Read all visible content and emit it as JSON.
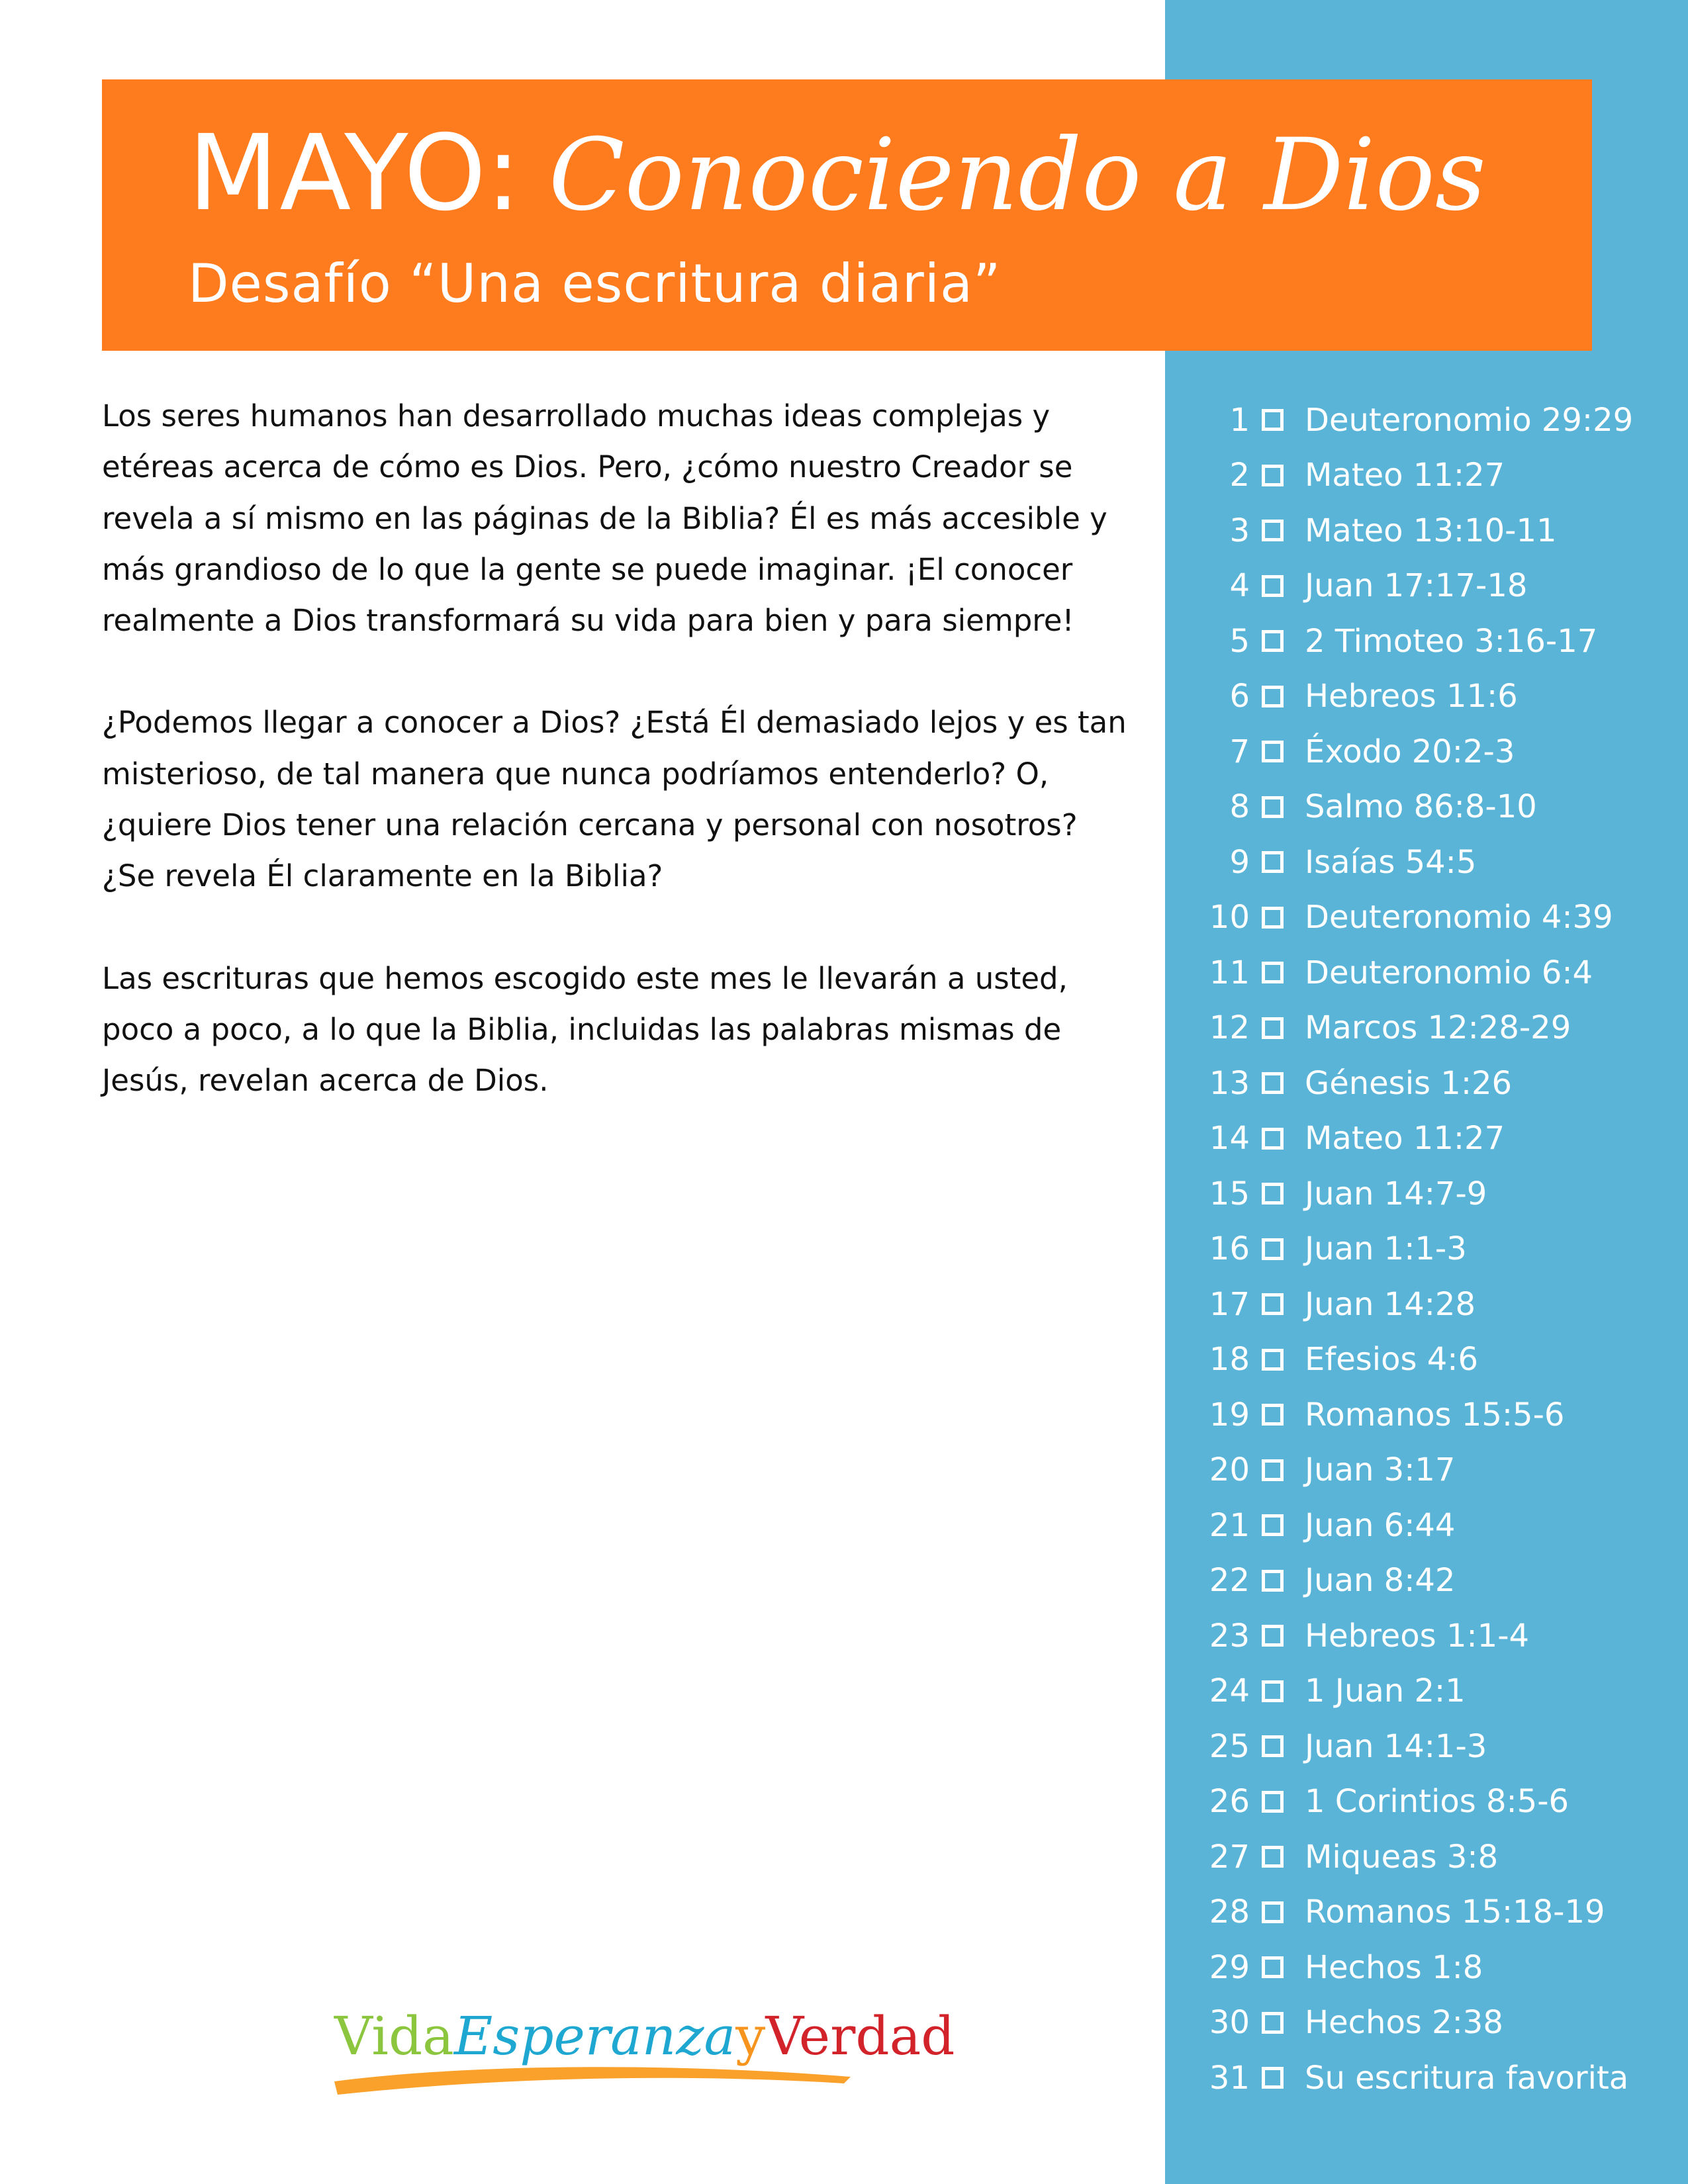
{
  "header": {
    "month": "MAYO:",
    "theme": "Conociendo a Dios",
    "subtitle": "Desafío “Una escritura diaria”"
  },
  "body": {
    "paragraphs": [
      "Los seres humanos han desarrollado muchas ideas complejas y etéreas acerca de cómo es Dios. Pero, ¿cómo nuestro Creador se revela a sí mismo en las páginas de la Biblia? Él es más accesible y más grandioso de lo que la gente se puede imaginar. ¡El conocer realmente a Dios transformará su vida para bien y para siempre!",
      "¿Podemos llegar a conocer a Dios? ¿Está Él demasiado lejos y es tan misterioso, de tal manera que nunca podríamos entenderlo? O, ¿quiere Dios tener una relación cercana y personal con nosotros? ¿Se revela Él claramente en la Biblia?",
      "Las escrituras que hemos escogido este mes le llevarán a usted, poco a poco, a lo que la Biblia, incluidas las palabras mismas de Jesús, revelan acerca de Dios."
    ]
  },
  "readings": [
    {
      "day": "1",
      "ref": "Deuteronomio 29:29"
    },
    {
      "day": "2",
      "ref": "Mateo 11:27"
    },
    {
      "day": "3",
      "ref": "Mateo 13:10-11"
    },
    {
      "day": "4",
      "ref": "Juan 17:17-18"
    },
    {
      "day": "5",
      "ref": "2 Timoteo 3:16-17"
    },
    {
      "day": "6",
      "ref": "Hebreos 11:6"
    },
    {
      "day": "7",
      "ref": "Éxodo 20:2-3"
    },
    {
      "day": "8",
      "ref": "Salmo 86:8-10"
    },
    {
      "day": "9",
      "ref": "Isaías 54:5"
    },
    {
      "day": "10",
      "ref": "Deuteronomio 4:39"
    },
    {
      "day": "11",
      "ref": "Deuteronomio 6:4"
    },
    {
      "day": "12",
      "ref": "Marcos 12:28-29"
    },
    {
      "day": "13",
      "ref": "Génesis 1:26"
    },
    {
      "day": "14",
      "ref": "Mateo 11:27"
    },
    {
      "day": "15",
      "ref": "Juan 14:7-9"
    },
    {
      "day": "16",
      "ref": "Juan 1:1-3"
    },
    {
      "day": "17",
      "ref": "Juan 14:28"
    },
    {
      "day": "18",
      "ref": "Efesios 4:6"
    },
    {
      "day": "19",
      "ref": "Romanos 15:5-6"
    },
    {
      "day": "20",
      "ref": "Juan 3:17"
    },
    {
      "day": "21",
      "ref": "Juan 6:44"
    },
    {
      "day": "22",
      "ref": "Juan 8:42"
    },
    {
      "day": "23",
      "ref": "Hebreos 1:1-4"
    },
    {
      "day": "24",
      "ref": "1 Juan 2:1"
    },
    {
      "day": "25",
      "ref": "Juan 14:1-3"
    },
    {
      "day": "26",
      "ref": "1 Corintios 8:5-6"
    },
    {
      "day": "27",
      "ref": "Miqueas 3:8"
    },
    {
      "day": "28",
      "ref": "Romanos 15:18-19"
    },
    {
      "day": "29",
      "ref": "Hechos 1:8"
    },
    {
      "day": "30",
      "ref": "Hechos 2:38"
    },
    {
      "day": "31",
      "ref": "Su escritura favorita"
    }
  ],
  "logo": {
    "part1": "Vida",
    "part2": "Esperanza",
    "part3": "y",
    "part4": "Verdad"
  },
  "colors": {
    "banner": "#fe7c1e",
    "sidebar": "#5ab4d7",
    "text": "#111111"
  }
}
